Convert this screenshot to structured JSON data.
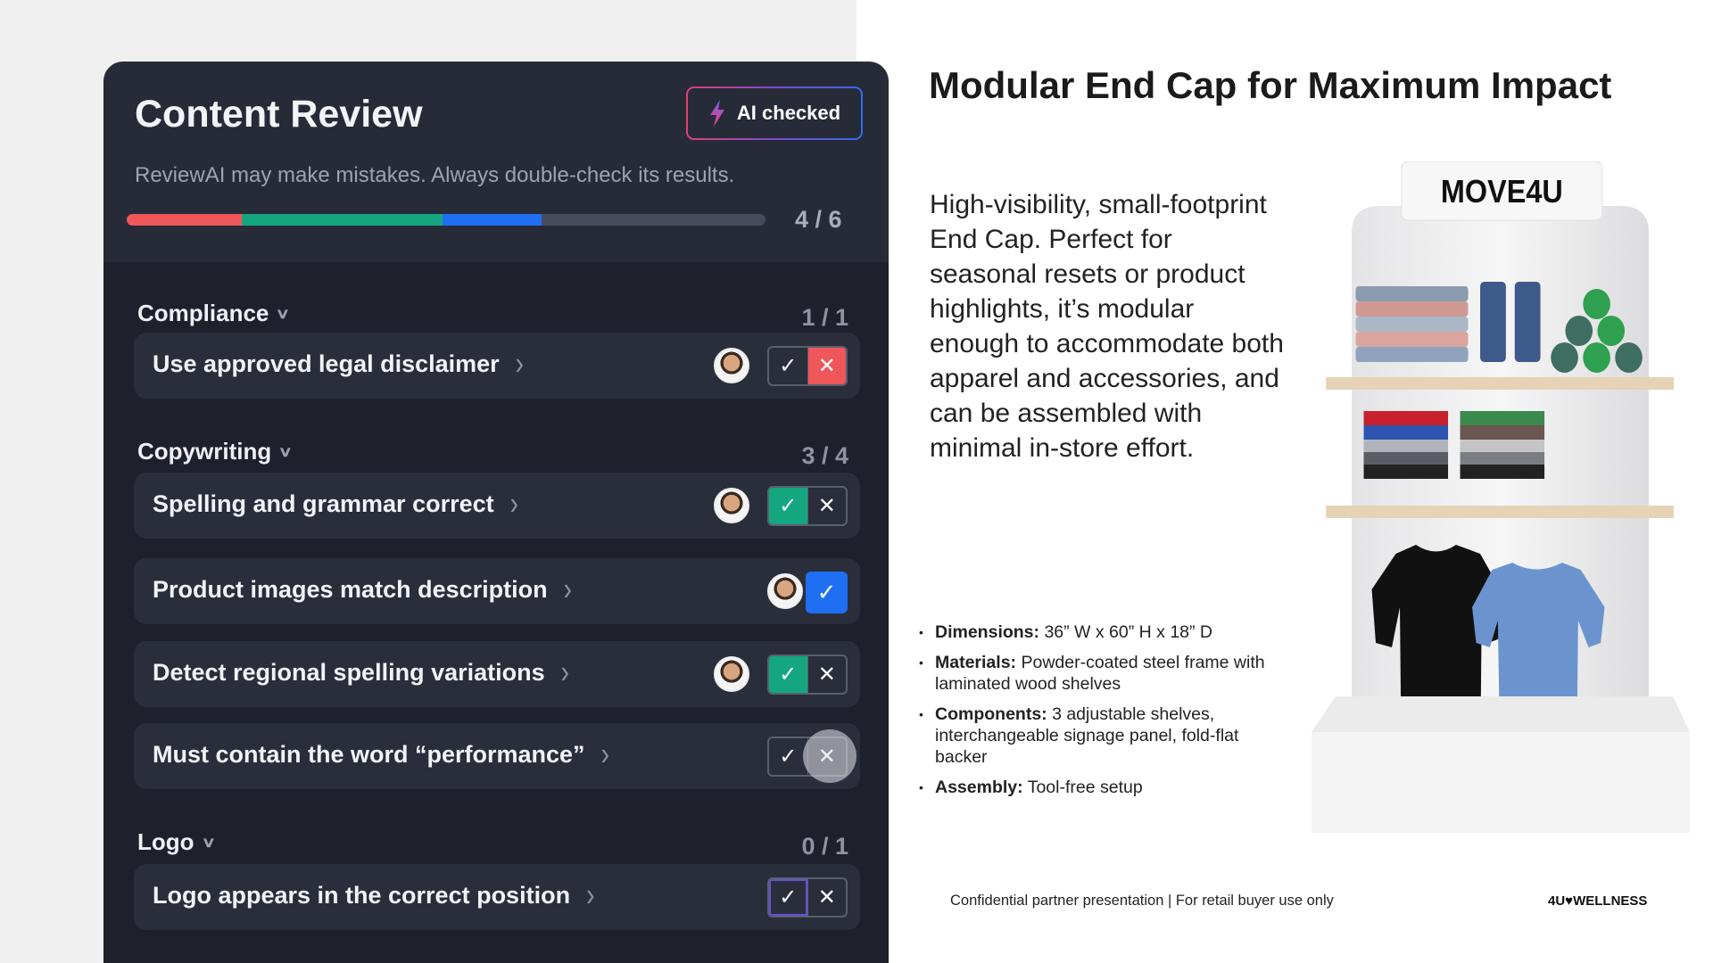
{
  "review": {
    "title": "Content Review",
    "ai_badge": "AI checked",
    "disclaimer": "ReviewAI may make mistakes. Always double-check its results.",
    "progress": {
      "label": "4 / 6",
      "segments": [
        {
          "color": "#f0575a",
          "pct": 18
        },
        {
          "color": "#14a77f",
          "pct": 31.5
        },
        {
          "color": "#1f6ff2",
          "pct": 15.5
        }
      ]
    },
    "sections": [
      {
        "name": "Compliance",
        "count": "1 / 1",
        "items": [
          {
            "label": "Use approved legal disclaimer",
            "status": "rejected"
          }
        ]
      },
      {
        "name": "Copywriting",
        "count": "3 / 4",
        "items": [
          {
            "label": "Spelling and grammar correct",
            "status": "approved"
          },
          {
            "label": "Product images match description",
            "status": "approved-single"
          },
          {
            "label": "Detect regional spelling variations",
            "status": "approved"
          },
          {
            "label": "Must contain the word “performance”",
            "status": "pending-hover-reject"
          }
        ]
      },
      {
        "name": "Logo",
        "count": "0 / 1",
        "items": [
          {
            "label": "Logo appears in the correct position",
            "status": "pending-focus-approve"
          }
        ]
      }
    ]
  },
  "slide": {
    "heading": "Modular End Cap for Maximum Impact",
    "paragraph": "High-visibility, small-footprint End Cap. Perfect for seasonal resets or product highlights, it’s modular enough to accommodate both apparel and accessories, and can be assembled with minimal in-store effort.",
    "bullets": [
      {
        "k": "Dimensions:",
        "v": "36” W x 60” H x 18” D"
      },
      {
        "k": "Materials:",
        "v": "Powder-coated steel frame with laminated wood shelves"
      },
      {
        "k": "Components:",
        "v": "3 adjustable shelves, interchangeable signage panel, fold-flat backer"
      },
      {
        "k": "Assembly:",
        "v": "Tool-free setup"
      }
    ],
    "sign_logo": "MOVE4U",
    "footer": "Confidential partner presentation | For retail buyer use only",
    "brand": "4U♥WELLNESS"
  }
}
